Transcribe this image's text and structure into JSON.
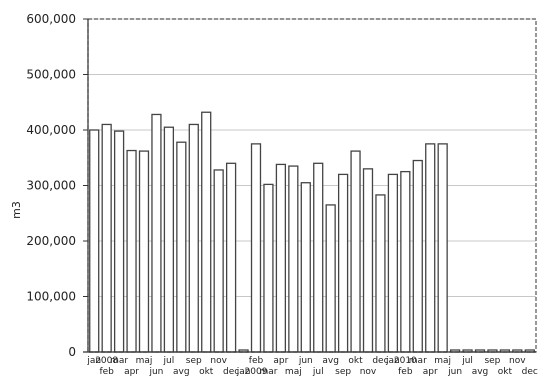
{
  "chart_data": {
    "type": "bar",
    "ylabel": "m3",
    "xlabel": "",
    "ylim": [
      0,
      600000
    ],
    "y_ticks": [
      "0",
      "100,000",
      "200,000",
      "300,000",
      "400,000",
      "500,000",
      "600,000"
    ],
    "grid": true,
    "categories": [
      "jan",
      "2008",
      "mar",
      "apr",
      "maj",
      "jun",
      "jul",
      "avg",
      "sep",
      "okt",
      "nov",
      "dec",
      "jan",
      "2009",
      "mar",
      "apr",
      "maj",
      "jun",
      "jul",
      "avg",
      "sep",
      "okt",
      "nov",
      "dec",
      "jan",
      "2010",
      "mar",
      "apr",
      "maj",
      "jun",
      "jul",
      "avg",
      "sep",
      "okt",
      "nov",
      "dec"
    ],
    "x_labels_top": [
      "jan",
      "2008",
      "mar",
      "",
      "maj",
      "",
      "jul",
      "",
      "sep",
      "",
      "nov",
      "",
      "",
      "feb",
      "",
      "apr",
      "",
      "jun",
      "",
      "avg",
      "",
      "okt",
      "",
      "dec",
      "jan",
      "2010",
      "mar",
      "",
      "maj",
      "",
      "jul",
      "",
      "sep",
      "",
      "nov",
      ""
    ],
    "x_labels_bottom": [
      "",
      "feb",
      "",
      "apr",
      "",
      "jun",
      "",
      "avg",
      "",
      "okt",
      "",
      "dec",
      "jan",
      "2009",
      "mar",
      "",
      "maj",
      "",
      "jul",
      "",
      "sep",
      "",
      "nov",
      "",
      "",
      "feb",
      "",
      "apr",
      "",
      "jun",
      "",
      "avg",
      "",
      "okt",
      "",
      "dec"
    ],
    "values": [
      400000,
      410000,
      398000,
      363000,
      362000,
      428000,
      405000,
      378000,
      410000,
      432000,
      328000,
      340000,
      0,
      375000,
      302000,
      338000,
      335000,
      305000,
      340000,
      265000,
      320000,
      362000,
      330000,
      283000,
      320000,
      325000,
      345000,
      375000,
      375000,
      0,
      0,
      0,
      0,
      0,
      0,
      0
    ],
    "colors": {
      "bar_fill": "#ffffff",
      "bar_stroke": "#444444",
      "grid": "#c8c8c8",
      "frame": "#555555"
    }
  }
}
